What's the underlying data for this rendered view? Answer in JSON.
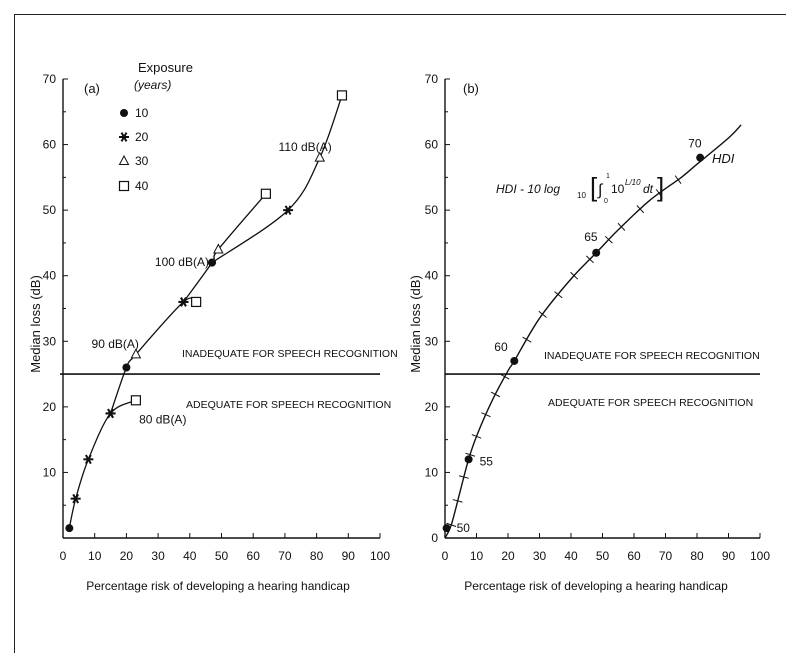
{
  "chart_data": [
    {
      "panel": "(a)",
      "type": "line",
      "xlabel": "Percentage risk of developing a hearing handicap",
      "ylabel": "Median loss (dB)",
      "xlim": [
        0,
        100
      ],
      "ylim": [
        0,
        70
      ],
      "xticks": [
        "0",
        "10",
        "20",
        "30",
        "40",
        "50",
        "60",
        "70",
        "80",
        "90",
        "100"
      ],
      "yticks": [
        "10",
        "20",
        "30",
        "40",
        "50",
        "60",
        "70"
      ],
      "legend": {
        "title": "Exposure",
        "subtitle": "(years)",
        "items": [
          {
            "label": "10",
            "marker": "dot"
          },
          {
            "label": "20",
            "marker": "star"
          },
          {
            "label": "30",
            "marker": "triangle"
          },
          {
            "label": "40",
            "marker": "square"
          }
        ]
      },
      "series": [
        {
          "name": "80 dB(A)",
          "label_at": [
            24,
            17.5
          ],
          "points": [
            [
              2,
              1.5,
              "dot"
            ],
            [
              4,
              6,
              "star"
            ],
            [
              8,
              12,
              "star"
            ],
            [
              15,
              19,
              "star"
            ],
            [
              23,
              21,
              "square"
            ]
          ]
        },
        {
          "name": "90 dB(A)",
          "label_at": [
            9,
            29
          ],
          "points": [
            [
              15,
              19,
              "star"
            ],
            [
              20,
              26,
              "dot"
            ],
            [
              23,
              28,
              "triangle"
            ],
            [
              38,
              36,
              "star"
            ],
            [
              42,
              36,
              "square"
            ]
          ]
        },
        {
          "name": "100 dB(A)",
          "label_at": [
            29,
            41.5
          ],
          "points": [
            [
              38,
              36,
              "star"
            ],
            [
              47,
              42,
              "dot"
            ],
            [
              49,
              44,
              "triangle"
            ],
            [
              64,
              52.5,
              "square"
            ]
          ]
        },
        {
          "name": "110 dB(A)",
          "label_at": [
            68,
            59
          ],
          "points": [
            [
              47,
              42,
              "dot"
            ],
            [
              71,
              50,
              "star"
            ],
            [
              81,
              58,
              "triangle"
            ],
            [
              88,
              67.5,
              "square"
            ]
          ]
        }
      ],
      "hline": 25,
      "annotations": {
        "above": "INADEQUATE FOR SPEECH RECOGNITION",
        "below": "ADEQUATE FOR SPEECH RECOGNITION"
      }
    },
    {
      "panel": "(b)",
      "type": "line",
      "xlabel": "Percentage risk of developing a hearing handicap",
      "ylabel": "Median loss (dB)",
      "xlim": [
        0,
        100
      ],
      "ylim": [
        0,
        70
      ],
      "xticks": [
        "0",
        "10",
        "20",
        "30",
        "40",
        "50",
        "60",
        "70",
        "80",
        "90",
        "100"
      ],
      "yticks": [
        "0",
        "10",
        "20",
        "30",
        "40",
        "50",
        "60",
        "70"
      ],
      "curve_label": "HDI",
      "formula": {
        "lhs": "HDI - 10 log",
        "sub": "10",
        "integrand": "10",
        "exp": "L/10",
        "dt": "dt",
        "upper": "1",
        "lower": "0"
      },
      "series": [
        {
          "name": "HDI",
          "points": [
            [
              0,
              0
            ],
            [
              2,
              2
            ],
            [
              5,
              7.5
            ],
            [
              7.5,
              12
            ],
            [
              10,
              15.5
            ],
            [
              15,
              21
            ],
            [
              20,
              25.5
            ],
            [
              22,
              27
            ],
            [
              30,
              33.5
            ],
            [
              40,
              39.5
            ],
            [
              48,
              43.5
            ],
            [
              55,
              47
            ],
            [
              65,
              51.5
            ],
            [
              75,
              55
            ],
            [
              80,
              57
            ],
            [
              90,
              61
            ],
            [
              94,
              63
            ]
          ],
          "ticks": [
            2,
            4,
            6,
            8,
            10,
            13,
            16,
            19,
            26,
            31,
            36,
            41,
            46,
            52,
            56,
            62,
            68,
            74
          ]
        }
      ],
      "labeled_points": [
        {
          "label": "50",
          "x": 0.5,
          "y": 1.5
        },
        {
          "label": "55",
          "x": 7.5,
          "y": 12
        },
        {
          "label": "60",
          "x": 22,
          "y": 27
        },
        {
          "label": "65",
          "x": 48,
          "y": 43.5
        },
        {
          "label": "70",
          "x": 81,
          "y": 58
        }
      ],
      "hline": 25,
      "annotations": {
        "above": "INADEQUATE FOR SPEECH RECOGNITION",
        "below": "ADEQUATE FOR SPEECH RECOGNITION"
      }
    }
  ]
}
